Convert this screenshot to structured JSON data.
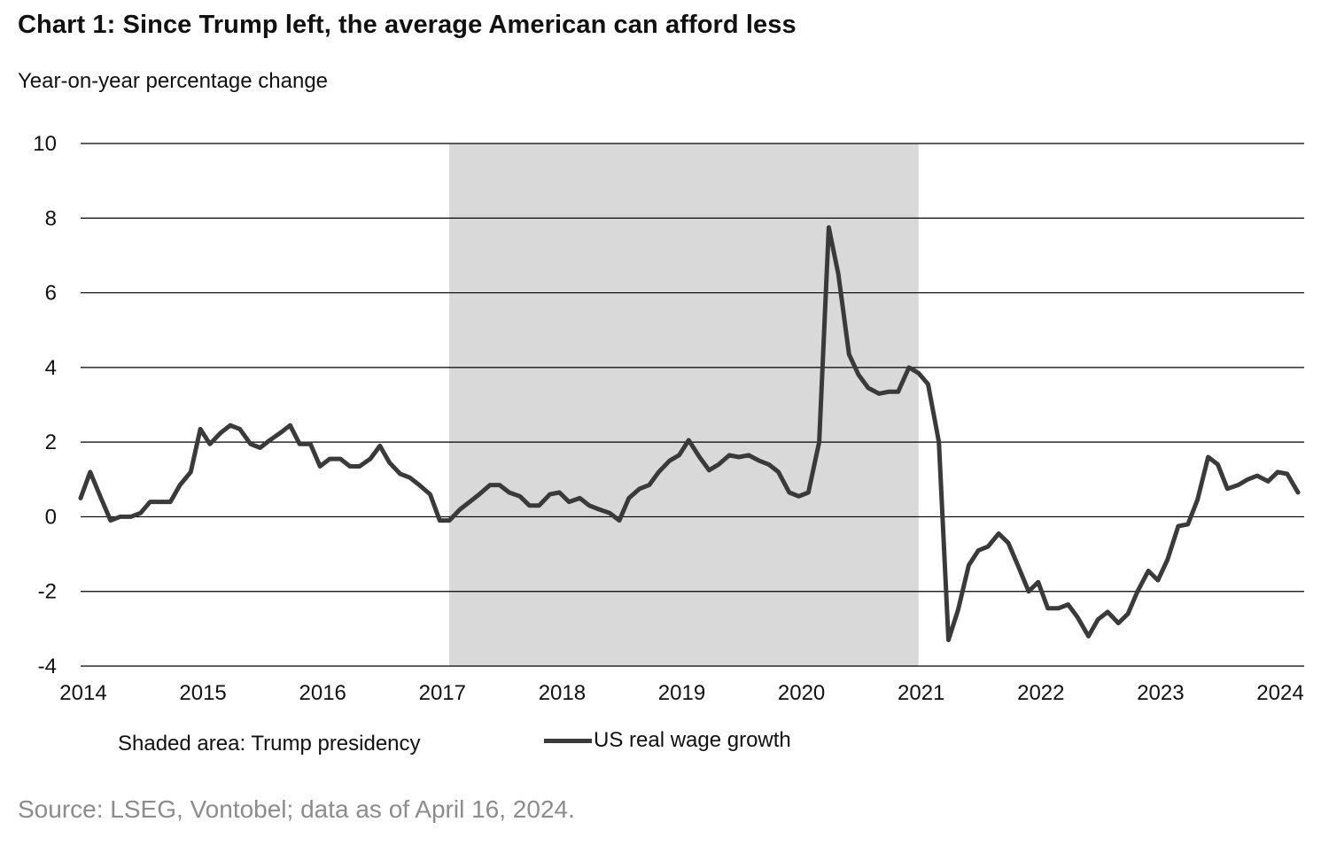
{
  "header": {
    "title": "Chart 1: Since Trump left, the average American can afford less",
    "subtitle": "Year-on-year percentage change"
  },
  "legend": {
    "shaded_note": "Shaded area: Trump presidency",
    "series_label": "US real wage growth"
  },
  "footer": {
    "source": "Source: LSEG, Vontobel; data as of April 16, 2024."
  },
  "colors": {
    "line": "#3a3a3a",
    "shade": "#d9d9d9",
    "grid": "#000000",
    "source_text": "#8c8c8c"
  },
  "chart_data": {
    "type": "line",
    "title": "Chart 1: Since Trump left, the average American can afford less",
    "ylabel": "Year-on-year percentage change",
    "xlabel": "",
    "ylim": [
      -4,
      10
    ],
    "xlim": [
      2014,
      2024.3
    ],
    "y_ticks": [
      "10",
      "8",
      "6",
      "4",
      "2",
      "0",
      "-2",
      "-4"
    ],
    "y_tick_values": [
      10,
      8,
      6,
      4,
      2,
      0,
      -2,
      -4
    ],
    "x_ticks": [
      "2014",
      "2015",
      "2016",
      "2017",
      "2018",
      "2019",
      "2020",
      "2021",
      "2022",
      "2023",
      "2024"
    ],
    "x_tick_values": [
      2014,
      2015,
      2016,
      2017,
      2018,
      2019,
      2020,
      2021,
      2022,
      2023,
      2024
    ],
    "grid": "horizontal",
    "shaded_region": {
      "label": "Trump presidency",
      "x_start": 2017.08,
      "x_end": 2021.0
    },
    "legend_position": "bottom",
    "series": [
      {
        "name": "US real wage growth",
        "x": [
          2014.0,
          2014.08,
          2014.17,
          2014.25,
          2014.33,
          2014.42,
          2014.5,
          2014.58,
          2014.67,
          2014.75,
          2014.83,
          2014.92,
          2015.0,
          2015.08,
          2015.17,
          2015.25,
          2015.33,
          2015.42,
          2015.5,
          2015.58,
          2015.67,
          2015.75,
          2015.83,
          2015.92,
          2016.0,
          2016.08,
          2016.17,
          2016.25,
          2016.33,
          2016.42,
          2016.5,
          2016.58,
          2016.67,
          2016.75,
          2016.83,
          2016.92,
          2017.0,
          2017.08,
          2017.17,
          2017.25,
          2017.33,
          2017.42,
          2017.5,
          2017.58,
          2017.67,
          2017.75,
          2017.83,
          2017.92,
          2018.0,
          2018.08,
          2018.17,
          2018.25,
          2018.33,
          2018.42,
          2018.5,
          2018.58,
          2018.67,
          2018.75,
          2018.83,
          2018.92,
          2019.0,
          2019.08,
          2019.17,
          2019.25,
          2019.33,
          2019.42,
          2019.5,
          2019.58,
          2019.67,
          2019.75,
          2019.83,
          2019.92,
          2020.0,
          2020.08,
          2020.17,
          2020.25,
          2020.33,
          2020.42,
          2020.5,
          2020.58,
          2020.67,
          2020.75,
          2020.83,
          2020.92,
          2021.0,
          2021.08,
          2021.17,
          2021.25,
          2021.33,
          2021.42,
          2021.5,
          2021.58,
          2021.67,
          2021.75,
          2021.83,
          2021.92,
          2022.0,
          2022.08,
          2022.17,
          2022.25,
          2022.33,
          2022.42,
          2022.5,
          2022.58,
          2022.67,
          2022.75,
          2022.83,
          2022.92,
          2023.0,
          2023.08,
          2023.17,
          2023.25,
          2023.33,
          2023.42,
          2023.5,
          2023.58,
          2023.67,
          2023.75,
          2023.83,
          2023.92,
          2024.0,
          2024.08,
          2024.17
        ],
        "values": [
          0.5,
          1.2,
          0.5,
          -0.1,
          0.0,
          0.0,
          0.1,
          0.4,
          0.4,
          0.4,
          0.85,
          1.2,
          2.35,
          1.95,
          2.25,
          2.45,
          2.35,
          1.95,
          1.85,
          2.05,
          2.25,
          2.45,
          1.95,
          1.95,
          1.35,
          1.55,
          1.55,
          1.35,
          1.35,
          1.55,
          1.9,
          1.45,
          1.15,
          1.05,
          0.85,
          0.6,
          -0.1,
          -0.1,
          0.2,
          0.4,
          0.6,
          0.85,
          0.85,
          0.65,
          0.55,
          0.3,
          0.3,
          0.6,
          0.65,
          0.4,
          0.5,
          0.3,
          0.2,
          0.1,
          -0.1,
          0.5,
          0.75,
          0.85,
          1.2,
          1.5,
          1.65,
          2.05,
          1.6,
          1.25,
          1.4,
          1.65,
          1.6,
          1.65,
          1.5,
          1.4,
          1.2,
          0.65,
          0.55,
          0.65,
          2.0,
          7.75,
          6.5,
          4.35,
          3.8,
          3.45,
          3.3,
          3.35,
          3.35,
          4.0,
          3.85,
          3.55,
          2.0,
          -3.3,
          -2.5,
          -1.3,
          -0.9,
          -0.8,
          -0.45,
          -0.7,
          -1.3,
          -2.0,
          -1.75,
          -2.45,
          -2.45,
          -2.35,
          -2.7,
          -3.2,
          -2.75,
          -2.55,
          -2.85,
          -2.6,
          -2.0,
          -1.45,
          -1.7,
          -1.15,
          -0.25,
          -0.2,
          0.45,
          1.6,
          1.4,
          0.75,
          0.85,
          1.0,
          1.1,
          0.95,
          1.2,
          1.15,
          0.65
        ]
      }
    ]
  }
}
